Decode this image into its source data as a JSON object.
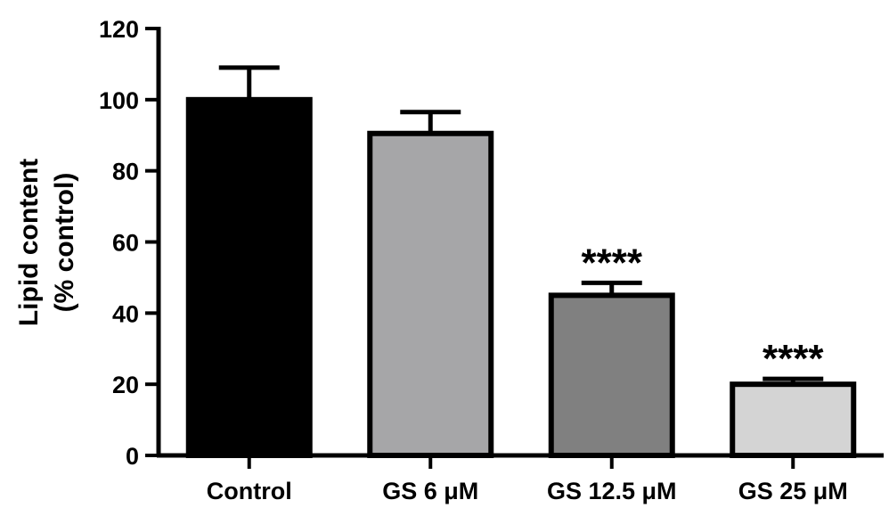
{
  "chart_data": {
    "type": "bar",
    "categories": [
      "Control",
      "GS 6 μM",
      "GS 12.5 μM",
      "GS 25 μM"
    ],
    "values": [
      100,
      90.5,
      45,
      20
    ],
    "errors": [
      9,
      6,
      3.5,
      1.5
    ],
    "significance": [
      "",
      "",
      "****",
      "****"
    ],
    "bar_colors": [
      "#000000",
      "#a6a6a8",
      "#808080",
      "#d4d4d4"
    ],
    "ylabel_line1": "Lipid content",
    "ylabel_line2": "(% control)",
    "ylim": [
      0,
      120
    ],
    "yticks": [
      0,
      20,
      40,
      60,
      80,
      100,
      120
    ],
    "grid": false,
    "legend": "none"
  }
}
